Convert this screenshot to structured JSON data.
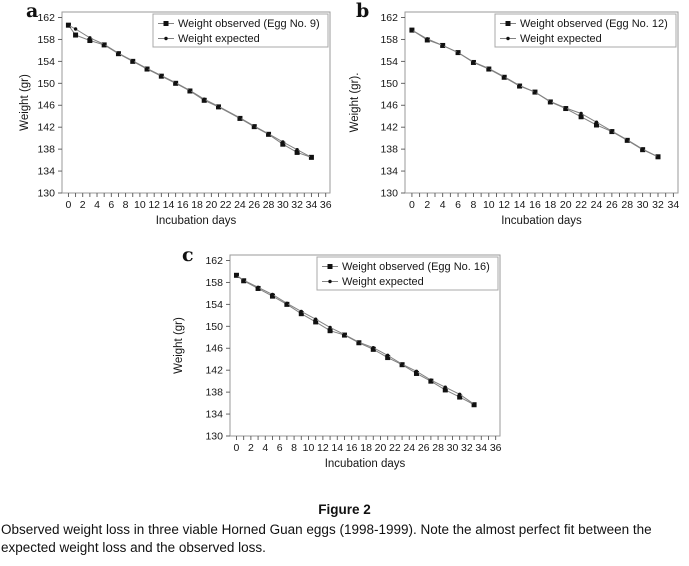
{
  "figure": {
    "caption_title": "Figure 2",
    "caption_text": "Observed weight loss in three viable Horned Guan eggs (1998-1999). Note the almost perfect fit between the expected weight loss and the observed loss."
  },
  "colors": {
    "marker": "#111111",
    "line": "#828282",
    "plot_border": "#9a9a9a",
    "legend_border": "#a8a8a8",
    "text": "#161616"
  },
  "chart_data": [
    {
      "type": "line",
      "panel_label": "a",
      "xlabel": "Incubation days",
      "ylabel": "Weight (gr)",
      "xlim": [
        -0.9,
        36.6
      ],
      "ylim": [
        130,
        163
      ],
      "xticks": [
        0,
        2,
        4,
        6,
        8,
        10,
        12,
        14,
        16,
        18,
        20,
        22,
        24,
        26,
        28,
        30,
        32,
        34,
        36
      ],
      "yticks": [
        130,
        134,
        138,
        142,
        146,
        150,
        154,
        158,
        162
      ],
      "minor_xtick_step": 1,
      "grid": false,
      "legend_position": "top-right",
      "x": [
        0,
        1,
        3,
        5,
        7,
        9,
        11,
        13,
        15,
        17,
        19,
        21,
        24,
        26,
        28,
        30,
        32,
        34
      ],
      "series": [
        {
          "name": "Weight observed (Egg No. 9)",
          "marker": "square",
          "values": [
            160.6,
            158.8,
            157.8,
            157.0,
            155.4,
            154.0,
            152.6,
            151.3,
            150.0,
            148.6,
            146.9,
            145.7,
            143.6,
            142.1,
            140.7,
            138.9,
            137.4,
            136.5
          ]
        },
        {
          "name": "Weight expected",
          "marker": "dot",
          "values": [
            160.6,
            159.9,
            158.3,
            157.1,
            155.5,
            154.1,
            152.7,
            151.4,
            150.1,
            148.7,
            147.1,
            145.8,
            143.7,
            142.2,
            140.8,
            139.3,
            137.9,
            136.5
          ]
        }
      ]
    },
    {
      "type": "line",
      "panel_label": "b",
      "xlabel": "Incubation days",
      "ylabel": "Weight (gr).",
      "xlim": [
        -0.9,
        34.6
      ],
      "ylim": [
        130,
        163
      ],
      "xticks": [
        0,
        2,
        4,
        6,
        8,
        10,
        12,
        14,
        16,
        18,
        20,
        22,
        24,
        26,
        28,
        30,
        32,
        34
      ],
      "yticks": [
        130,
        134,
        138,
        142,
        146,
        150,
        154,
        158,
        162
      ],
      "minor_xtick_step": 1,
      "grid": false,
      "legend_position": "top-right",
      "x": [
        0,
        2,
        4,
        6,
        8,
        10,
        12,
        14,
        16,
        18,
        20,
        22,
        24,
        26,
        28,
        30,
        32
      ],
      "series": [
        {
          "name": "Weight observed (Egg No. 12)",
          "marker": "square",
          "values": [
            159.7,
            157.9,
            156.9,
            155.6,
            153.8,
            152.6,
            151.1,
            149.5,
            148.4,
            146.6,
            145.4,
            143.9,
            142.4,
            141.2,
            139.6,
            137.9,
            136.6
          ]
        },
        {
          "name": "Weight expected",
          "marker": "dot",
          "values": [
            159.7,
            158.1,
            156.9,
            155.6,
            153.9,
            152.7,
            151.2,
            149.6,
            148.4,
            146.7,
            145.5,
            144.5,
            142.9,
            141.3,
            139.7,
            138.0,
            136.6
          ]
        }
      ]
    },
    {
      "type": "line",
      "panel_label": "c",
      "xlabel": "Incubation days",
      "ylabel": "Weight (gr)",
      "xlim": [
        -0.9,
        36.6
      ],
      "ylim": [
        130,
        163
      ],
      "xticks": [
        0,
        2,
        4,
        6,
        8,
        10,
        12,
        14,
        16,
        18,
        20,
        22,
        24,
        26,
        28,
        30,
        32,
        34,
        36
      ],
      "yticks": [
        130,
        134,
        138,
        142,
        146,
        150,
        154,
        158,
        162
      ],
      "minor_xtick_step": 1,
      "grid": false,
      "legend_position": "top-right",
      "x": [
        0,
        1,
        3,
        5,
        7,
        9,
        11,
        13,
        15,
        17,
        19,
        21,
        23,
        25,
        27,
        29,
        31,
        33
      ],
      "series": [
        {
          "name": "Weight observed (Egg No. 16)",
          "marker": "square",
          "values": [
            159.3,
            158.3,
            156.9,
            155.5,
            154.0,
            152.3,
            150.8,
            149.2,
            148.4,
            147.0,
            145.8,
            144.3,
            143.0,
            141.4,
            140.0,
            138.4,
            137.1,
            135.7
          ]
        },
        {
          "name": "Weight expected",
          "marker": "dot",
          "values": [
            159.3,
            158.4,
            157.1,
            155.8,
            154.2,
            152.7,
            151.3,
            149.8,
            148.5,
            147.1,
            146.1,
            144.7,
            143.1,
            141.8,
            140.2,
            138.9,
            137.6,
            135.8
          ]
        }
      ]
    }
  ]
}
